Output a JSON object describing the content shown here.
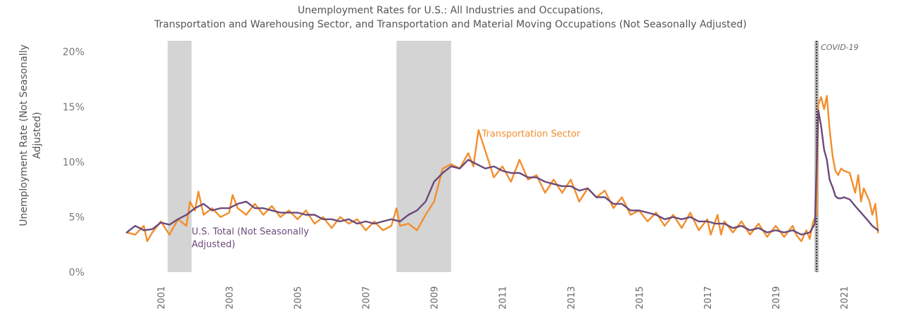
{
  "chart_data": {
    "type": "line",
    "title_lines": [
      "Unemployment Rates for U.S.: All Industries and Occupations,",
      "Transportation and Warehousing Sector, and Transportation and Material Moving Occupations (Not Seasonally Adjusted)"
    ],
    "ylabel_lines": [
      "Unemployment Rate (Not Seasonally",
      "Adjusted)"
    ],
    "xlabel": "",
    "ylim": [
      0,
      21
    ],
    "xlim": [
      2000.0,
      2022.3
    ],
    "y_ticks": [
      {
        "value": 0,
        "label": "0%"
      },
      {
        "value": 5,
        "label": "5%"
      },
      {
        "value": 10,
        "label": "10%"
      },
      {
        "value": 15,
        "label": "15%"
      },
      {
        "value": 20,
        "label": "20%"
      }
    ],
    "x_ticks": [
      {
        "value": 2001,
        "label": "2001"
      },
      {
        "value": 2003,
        "label": "2003"
      },
      {
        "value": 2005,
        "label": "2005"
      },
      {
        "value": 2007,
        "label": "2007"
      },
      {
        "value": 2009,
        "label": "2009"
      },
      {
        "value": 2011,
        "label": "2011"
      },
      {
        "value": 2013,
        "label": "2013"
      },
      {
        "value": 2015,
        "label": "2015"
      },
      {
        "value": 2017,
        "label": "2017"
      },
      {
        "value": 2019,
        "label": "2019"
      },
      {
        "value": 2021,
        "label": "2021"
      }
    ],
    "recessions": [
      {
        "start": 2001.2,
        "end": 2001.9
      },
      {
        "start": 2007.9,
        "end": 2009.5
      }
    ],
    "event_line": {
      "x": 2020.2,
      "label": "COVID-19"
    },
    "grid": false,
    "series": [
      {
        "name": "Transportation Sector",
        "color": "#f28e2b",
        "points": [
          [
            2000.0,
            3.6
          ],
          [
            2000.25,
            3.4
          ],
          [
            2000.5,
            4.2
          ],
          [
            2000.6,
            2.8
          ],
          [
            2000.75,
            3.6
          ],
          [
            2001.0,
            4.6
          ],
          [
            2001.25,
            3.4
          ],
          [
            2001.5,
            4.8
          ],
          [
            2001.75,
            4.2
          ],
          [
            2001.85,
            6.4
          ],
          [
            2002.0,
            5.6
          ],
          [
            2002.1,
            7.3
          ],
          [
            2002.25,
            5.2
          ],
          [
            2002.5,
            5.8
          ],
          [
            2002.75,
            5.0
          ],
          [
            2003.0,
            5.4
          ],
          [
            2003.1,
            7.0
          ],
          [
            2003.25,
            5.8
          ],
          [
            2003.5,
            5.2
          ],
          [
            2003.75,
            6.2
          ],
          [
            2004.0,
            5.2
          ],
          [
            2004.25,
            6.0
          ],
          [
            2004.5,
            5.0
          ],
          [
            2004.75,
            5.6
          ],
          [
            2005.0,
            4.8
          ],
          [
            2005.25,
            5.6
          ],
          [
            2005.5,
            4.4
          ],
          [
            2005.75,
            5.0
          ],
          [
            2006.0,
            4.0
          ],
          [
            2006.25,
            5.0
          ],
          [
            2006.5,
            4.4
          ],
          [
            2006.75,
            4.8
          ],
          [
            2007.0,
            3.8
          ],
          [
            2007.25,
            4.6
          ],
          [
            2007.5,
            3.8
          ],
          [
            2007.75,
            4.2
          ],
          [
            2007.9,
            5.8
          ],
          [
            2008.0,
            4.2
          ],
          [
            2008.25,
            4.4
          ],
          [
            2008.5,
            3.8
          ],
          [
            2008.75,
            5.2
          ],
          [
            2009.0,
            6.4
          ],
          [
            2009.25,
            9.4
          ],
          [
            2009.5,
            9.8
          ],
          [
            2009.75,
            9.4
          ],
          [
            2010.0,
            10.8
          ],
          [
            2010.15,
            9.6
          ],
          [
            2010.3,
            12.9
          ],
          [
            2010.5,
            11.0
          ],
          [
            2010.75,
            8.6
          ],
          [
            2011.0,
            9.6
          ],
          [
            2011.25,
            8.2
          ],
          [
            2011.5,
            10.2
          ],
          [
            2011.75,
            8.4
          ],
          [
            2012.0,
            8.8
          ],
          [
            2012.25,
            7.2
          ],
          [
            2012.5,
            8.4
          ],
          [
            2012.75,
            7.2
          ],
          [
            2013.0,
            8.4
          ],
          [
            2013.25,
            6.4
          ],
          [
            2013.5,
            7.6
          ],
          [
            2013.75,
            6.8
          ],
          [
            2014.0,
            7.4
          ],
          [
            2014.25,
            5.8
          ],
          [
            2014.5,
            6.8
          ],
          [
            2014.75,
            5.2
          ],
          [
            2015.0,
            5.6
          ],
          [
            2015.25,
            4.6
          ],
          [
            2015.5,
            5.4
          ],
          [
            2015.75,
            4.2
          ],
          [
            2016.0,
            5.2
          ],
          [
            2016.25,
            4.0
          ],
          [
            2016.5,
            5.4
          ],
          [
            2016.75,
            3.8
          ],
          [
            2017.0,
            4.8
          ],
          [
            2017.1,
            3.4
          ],
          [
            2017.3,
            5.2
          ],
          [
            2017.4,
            3.4
          ],
          [
            2017.5,
            4.6
          ],
          [
            2017.75,
            3.6
          ],
          [
            2018.0,
            4.6
          ],
          [
            2018.25,
            3.4
          ],
          [
            2018.5,
            4.4
          ],
          [
            2018.75,
            3.2
          ],
          [
            2019.0,
            4.2
          ],
          [
            2019.25,
            3.2
          ],
          [
            2019.5,
            4.2
          ],
          [
            2019.6,
            3.4
          ],
          [
            2019.75,
            2.8
          ],
          [
            2019.9,
            3.8
          ],
          [
            2020.0,
            3.0
          ],
          [
            2020.1,
            4.6
          ],
          [
            2020.2,
            5.2
          ],
          [
            2020.25,
            15.2
          ],
          [
            2020.33,
            15.9
          ],
          [
            2020.42,
            14.8
          ],
          [
            2020.5,
            16.0
          ],
          [
            2020.58,
            13.0
          ],
          [
            2020.67,
            10.5
          ],
          [
            2020.75,
            9.2
          ],
          [
            2020.83,
            8.8
          ],
          [
            2020.92,
            9.4
          ],
          [
            2021.0,
            9.2
          ],
          [
            2021.17,
            9.0
          ],
          [
            2021.33,
            7.2
          ],
          [
            2021.42,
            8.8
          ],
          [
            2021.5,
            6.4
          ],
          [
            2021.58,
            7.6
          ],
          [
            2021.75,
            6.4
          ],
          [
            2021.83,
            5.2
          ],
          [
            2021.92,
            6.2
          ],
          [
            2022.0,
            3.6
          ]
        ]
      },
      {
        "name": "U.S. Total (Not Seasonally Adjusted)",
        "color": "#6b4a7a",
        "points": [
          [
            2000.0,
            3.6
          ],
          [
            2000.25,
            4.2
          ],
          [
            2000.5,
            3.8
          ],
          [
            2000.75,
            3.9
          ],
          [
            2001.0,
            4.5
          ],
          [
            2001.25,
            4.3
          ],
          [
            2001.5,
            4.8
          ],
          [
            2001.75,
            5.2
          ],
          [
            2002.0,
            5.8
          ],
          [
            2002.25,
            6.2
          ],
          [
            2002.5,
            5.6
          ],
          [
            2002.75,
            5.8
          ],
          [
            2003.0,
            5.8
          ],
          [
            2003.25,
            6.2
          ],
          [
            2003.5,
            6.4
          ],
          [
            2003.75,
            5.8
          ],
          [
            2004.0,
            5.8
          ],
          [
            2004.25,
            5.6
          ],
          [
            2004.5,
            5.4
          ],
          [
            2004.75,
            5.4
          ],
          [
            2005.0,
            5.4
          ],
          [
            2005.25,
            5.2
          ],
          [
            2005.5,
            5.2
          ],
          [
            2005.75,
            4.8
          ],
          [
            2006.0,
            4.8
          ],
          [
            2006.25,
            4.6
          ],
          [
            2006.5,
            4.8
          ],
          [
            2006.75,
            4.4
          ],
          [
            2007.0,
            4.6
          ],
          [
            2007.25,
            4.4
          ],
          [
            2007.5,
            4.6
          ],
          [
            2007.75,
            4.8
          ],
          [
            2008.0,
            4.6
          ],
          [
            2008.25,
            5.2
          ],
          [
            2008.5,
            5.6
          ],
          [
            2008.75,
            6.4
          ],
          [
            2009.0,
            8.2
          ],
          [
            2009.25,
            9.0
          ],
          [
            2009.5,
            9.6
          ],
          [
            2009.75,
            9.4
          ],
          [
            2010.0,
            10.2
          ],
          [
            2010.25,
            9.8
          ],
          [
            2010.5,
            9.4
          ],
          [
            2010.75,
            9.6
          ],
          [
            2011.0,
            9.2
          ],
          [
            2011.25,
            9.0
          ],
          [
            2011.5,
            9.0
          ],
          [
            2011.75,
            8.6
          ],
          [
            2012.0,
            8.6
          ],
          [
            2012.25,
            8.2
          ],
          [
            2012.5,
            8.0
          ],
          [
            2012.75,
            7.8
          ],
          [
            2013.0,
            7.8
          ],
          [
            2013.25,
            7.4
          ],
          [
            2013.5,
            7.6
          ],
          [
            2013.75,
            6.8
          ],
          [
            2014.0,
            6.8
          ],
          [
            2014.25,
            6.2
          ],
          [
            2014.5,
            6.2
          ],
          [
            2014.75,
            5.6
          ],
          [
            2015.0,
            5.6
          ],
          [
            2015.25,
            5.4
          ],
          [
            2015.5,
            5.2
          ],
          [
            2015.75,
            4.8
          ],
          [
            2016.0,
            5.0
          ],
          [
            2016.25,
            4.8
          ],
          [
            2016.5,
            5.0
          ],
          [
            2016.75,
            4.6
          ],
          [
            2017.0,
            4.6
          ],
          [
            2017.25,
            4.4
          ],
          [
            2017.5,
            4.4
          ],
          [
            2017.75,
            4.0
          ],
          [
            2018.0,
            4.2
          ],
          [
            2018.25,
            3.8
          ],
          [
            2018.5,
            4.0
          ],
          [
            2018.75,
            3.6
          ],
          [
            2019.0,
            3.8
          ],
          [
            2019.25,
            3.6
          ],
          [
            2019.5,
            3.8
          ],
          [
            2019.75,
            3.4
          ],
          [
            2020.0,
            3.6
          ],
          [
            2020.15,
            4.4
          ],
          [
            2020.25,
            14.7
          ],
          [
            2020.33,
            13.3
          ],
          [
            2020.42,
            11.1
          ],
          [
            2020.5,
            10.2
          ],
          [
            2020.58,
            8.4
          ],
          [
            2020.67,
            7.7
          ],
          [
            2020.75,
            6.9
          ],
          [
            2020.83,
            6.7
          ],
          [
            2020.92,
            6.7
          ],
          [
            2021.0,
            6.8
          ],
          [
            2021.17,
            6.6
          ],
          [
            2021.33,
            6.0
          ],
          [
            2021.5,
            5.4
          ],
          [
            2021.67,
            4.8
          ],
          [
            2021.83,
            4.2
          ],
          [
            2022.0,
            3.8
          ]
        ]
      }
    ],
    "series_labels": [
      {
        "series": 0,
        "lines": [
          "Transportation Sector"
        ],
        "at": [
          2010.4,
          12.3
        ],
        "color": "#f28e2b"
      },
      {
        "series": 1,
        "lines": [
          "U.S. Total (Not Seasonally",
          "Adjusted)"
        ],
        "at": [
          2001.9,
          3.4
        ],
        "color": "#6b4a7a"
      }
    ]
  }
}
